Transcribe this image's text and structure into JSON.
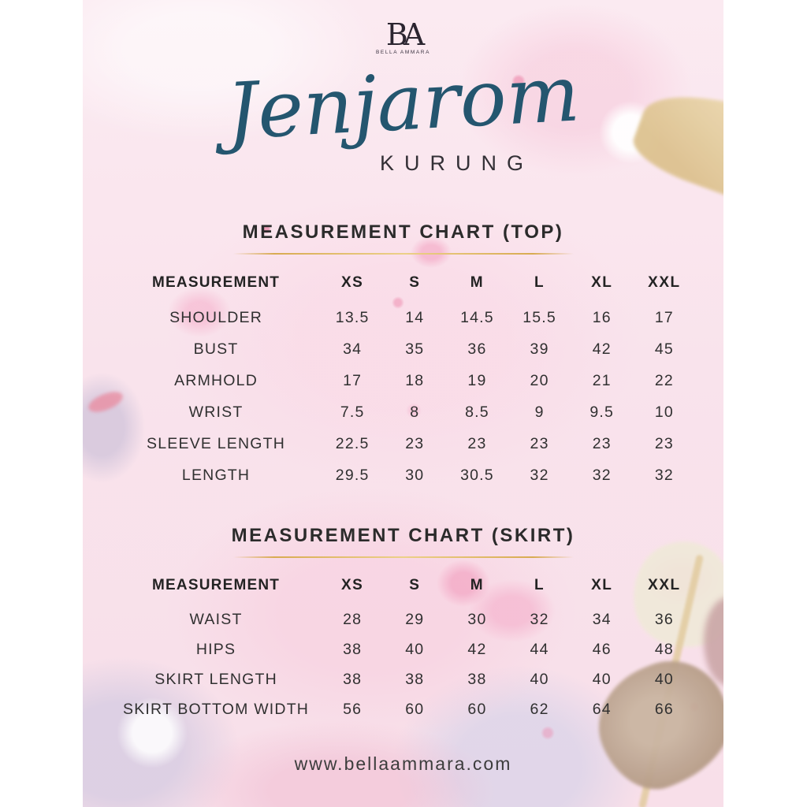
{
  "brand": {
    "monogram": "BA",
    "name": "BELLA AMMARA"
  },
  "title": {
    "product_name": "Jenjarom",
    "product_type": "KURUNG"
  },
  "chart_data": [
    {
      "type": "table",
      "title": "MEASUREMENT CHART (TOP)",
      "columns": [
        "MEASUREMENT",
        "XS",
        "S",
        "M",
        "L",
        "XL",
        "XXL"
      ],
      "rows": [
        {
          "label": "SHOULDER",
          "values": [
            "13.5",
            "14",
            "14.5",
            "15.5",
            "16",
            "17"
          ]
        },
        {
          "label": "BUST",
          "values": [
            "34",
            "35",
            "36",
            "39",
            "42",
            "45"
          ]
        },
        {
          "label": "ARMHOLD",
          "values": [
            "17",
            "18",
            "19",
            "20",
            "21",
            "22"
          ]
        },
        {
          "label": "WRIST",
          "values": [
            "7.5",
            "8",
            "8.5",
            "9",
            "9.5",
            "10"
          ]
        },
        {
          "label": "SLEEVE LENGTH",
          "values": [
            "22.5",
            "23",
            "23",
            "23",
            "23",
            "23"
          ]
        },
        {
          "label": "LENGTH",
          "values": [
            "29.5",
            "30",
            "30.5",
            "32",
            "32",
            "32"
          ]
        }
      ]
    },
    {
      "type": "table",
      "title": "MEASUREMENT CHART (SKIRT)",
      "columns": [
        "MEASUREMENT",
        "XS",
        "S",
        "M",
        "L",
        "XL",
        "XXL"
      ],
      "rows": [
        {
          "label": "WAIST",
          "values": [
            "28",
            "29",
            "30",
            "32",
            "34",
            "36"
          ]
        },
        {
          "label": "HIPS",
          "values": [
            "38",
            "40",
            "42",
            "44",
            "46",
            "48"
          ]
        },
        {
          "label": "SKIRT LENGTH",
          "values": [
            "38",
            "38",
            "38",
            "40",
            "40",
            "40"
          ]
        },
        {
          "label": "SKIRT BOTTOM WIDTH",
          "values": [
            "56",
            "60",
            "60",
            "62",
            "64",
            "66"
          ]
        }
      ]
    }
  ],
  "footer": {
    "website": "www.bellaammara.com"
  },
  "colors": {
    "script_blue": "#24566f",
    "heading_text": "#2b2b2b",
    "body_text": "#303030",
    "divider_gold": "#d8ab52",
    "background_pink": "#f9e4ed"
  }
}
